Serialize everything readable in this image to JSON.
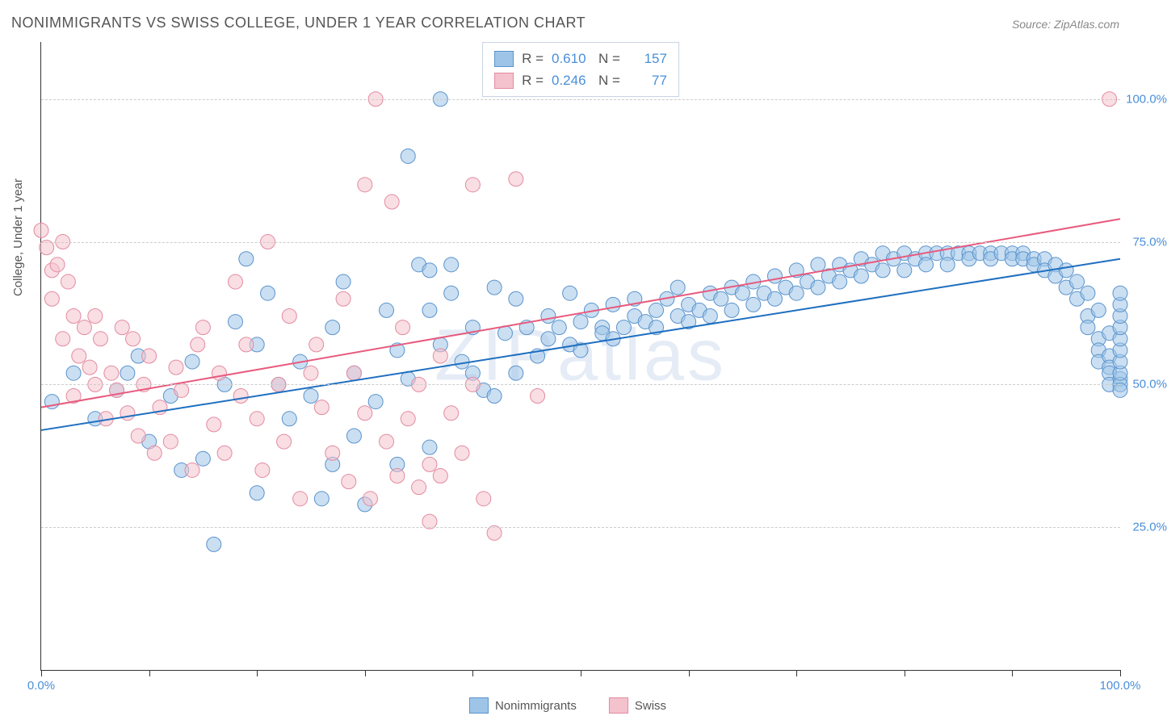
{
  "title": "NONIMMIGRANTS VS SWISS COLLEGE, UNDER 1 YEAR CORRELATION CHART",
  "source": "Source: ZipAtlas.com",
  "watermark": "ZIPatlas",
  "ylabel": "College, Under 1 year",
  "chart": {
    "type": "scatter",
    "background_color": "#ffffff",
    "grid_color": "#cccccc",
    "axis_color": "#333333",
    "xlim": [
      0,
      100
    ],
    "ylim": [
      0,
      110
    ],
    "xticks": [
      0,
      10,
      20,
      30,
      40,
      50,
      60,
      70,
      80,
      90,
      100
    ],
    "xtick_labels": {
      "0": "0.0%",
      "100": "100.0%"
    },
    "yticks": [
      25,
      50,
      75,
      100
    ],
    "ytick_labels": {
      "25": "25.0%",
      "50": "50.0%",
      "75": "75.0%",
      "100": "100.0%"
    },
    "ytick_color": "#4a8fd9",
    "marker_radius": 9,
    "marker_opacity": 0.55,
    "line_width": 2
  },
  "series": [
    {
      "name": "Nonimmigrants",
      "color_fill": "#9ec5e8",
      "color_stroke": "#5b93cc",
      "line_color": "#1f6fc0",
      "R": "0.610",
      "N": "157",
      "trend": {
        "x1": 0,
        "y1": 42,
        "x2": 100,
        "y2": 72
      },
      "points": [
        [
          1,
          47
        ],
        [
          3,
          52
        ],
        [
          5,
          44
        ],
        [
          7,
          49
        ],
        [
          8,
          52
        ],
        [
          9,
          55
        ],
        [
          10,
          40
        ],
        [
          12,
          48
        ],
        [
          13,
          35
        ],
        [
          14,
          54
        ],
        [
          15,
          37
        ],
        [
          16,
          22
        ],
        [
          17,
          50
        ],
        [
          18,
          61
        ],
        [
          19,
          72
        ],
        [
          20,
          57
        ],
        [
          20,
          31
        ],
        [
          21,
          66
        ],
        [
          22,
          50
        ],
        [
          23,
          44
        ],
        [
          24,
          54
        ],
        [
          25,
          48
        ],
        [
          26,
          30
        ],
        [
          27,
          60
        ],
        [
          27,
          36
        ],
        [
          28,
          68
        ],
        [
          29,
          41
        ],
        [
          29,
          52
        ],
        [
          30,
          29
        ],
        [
          31,
          47
        ],
        [
          32,
          63
        ],
        [
          33,
          56
        ],
        [
          33,
          36
        ],
        [
          34,
          90
        ],
        [
          34,
          51
        ],
        [
          35,
          71
        ],
        [
          36,
          63
        ],
        [
          36,
          70
        ],
        [
          36,
          39
        ],
        [
          37,
          57
        ],
        [
          37,
          100
        ],
        [
          38,
          66
        ],
        [
          38,
          71
        ],
        [
          39,
          54
        ],
        [
          40,
          52
        ],
        [
          40,
          60
        ],
        [
          41,
          49
        ],
        [
          42,
          67
        ],
        [
          42,
          48
        ],
        [
          43,
          59
        ],
        [
          44,
          52
        ],
        [
          44,
          65
        ],
        [
          45,
          60
        ],
        [
          46,
          55
        ],
        [
          47,
          62
        ],
        [
          47,
          58
        ],
        [
          48,
          60
        ],
        [
          49,
          57
        ],
        [
          49,
          66
        ],
        [
          50,
          61
        ],
        [
          50,
          56
        ],
        [
          51,
          63
        ],
        [
          52,
          60
        ],
        [
          52,
          59
        ],
        [
          53,
          64
        ],
        [
          53,
          58
        ],
        [
          54,
          60
        ],
        [
          55,
          62
        ],
        [
          55,
          65
        ],
        [
          56,
          61
        ],
        [
          57,
          63
        ],
        [
          57,
          60
        ],
        [
          58,
          65
        ],
        [
          59,
          62
        ],
        [
          59,
          67
        ],
        [
          60,
          64
        ],
        [
          60,
          61
        ],
        [
          61,
          63
        ],
        [
          62,
          66
        ],
        [
          62,
          62
        ],
        [
          63,
          65
        ],
        [
          64,
          67
        ],
        [
          64,
          63
        ],
        [
          65,
          66
        ],
        [
          66,
          68
        ],
        [
          66,
          64
        ],
        [
          67,
          66
        ],
        [
          68,
          69
        ],
        [
          68,
          65
        ],
        [
          69,
          67
        ],
        [
          70,
          70
        ],
        [
          70,
          66
        ],
        [
          71,
          68
        ],
        [
          72,
          71
        ],
        [
          72,
          67
        ],
        [
          73,
          69
        ],
        [
          74,
          71
        ],
        [
          74,
          68
        ],
        [
          75,
          70
        ],
        [
          76,
          72
        ],
        [
          76,
          69
        ],
        [
          77,
          71
        ],
        [
          78,
          73
        ],
        [
          78,
          70
        ],
        [
          79,
          72
        ],
        [
          80,
          73
        ],
        [
          80,
          70
        ],
        [
          81,
          72
        ],
        [
          82,
          73
        ],
        [
          82,
          71
        ],
        [
          83,
          73
        ],
        [
          84,
          73
        ],
        [
          84,
          71
        ],
        [
          85,
          73
        ],
        [
          86,
          73
        ],
        [
          86,
          72
        ],
        [
          87,
          73
        ],
        [
          88,
          73
        ],
        [
          88,
          72
        ],
        [
          89,
          73
        ],
        [
          90,
          73
        ],
        [
          90,
          72
        ],
        [
          91,
          73
        ],
        [
          91,
          72
        ],
        [
          92,
          72
        ],
        [
          92,
          71
        ],
        [
          93,
          72
        ],
        [
          93,
          70
        ],
        [
          94,
          71
        ],
        [
          94,
          69
        ],
        [
          95,
          70
        ],
        [
          95,
          67
        ],
        [
          96,
          68
        ],
        [
          96,
          65
        ],
        [
          97,
          66
        ],
        [
          97,
          62
        ],
        [
          97,
          60
        ],
        [
          98,
          63
        ],
        [
          98,
          58
        ],
        [
          98,
          56
        ],
        [
          98,
          54
        ],
        [
          99,
          59
        ],
        [
          99,
          55
        ],
        [
          99,
          53
        ],
        [
          99,
          52
        ],
        [
          99,
          50
        ],
        [
          100,
          51
        ],
        [
          100,
          50
        ],
        [
          100,
          52
        ],
        [
          100,
          54
        ],
        [
          100,
          56
        ],
        [
          100,
          58
        ],
        [
          100,
          60
        ],
        [
          100,
          62
        ],
        [
          100,
          64
        ],
        [
          100,
          66
        ],
        [
          100,
          49
        ]
      ]
    },
    {
      "name": "Swiss",
      "color_fill": "#f4c2cd",
      "color_stroke": "#e38ba0",
      "line_color": "#e85a7e",
      "R": "0.246",
      "N": "77",
      "trend": {
        "x1": 0,
        "y1": 46,
        "x2": 100,
        "y2": 79
      },
      "points": [
        [
          0,
          77
        ],
        [
          0.5,
          74
        ],
        [
          1,
          70
        ],
        [
          1,
          65
        ],
        [
          1.5,
          71
        ],
        [
          2,
          75
        ],
        [
          2,
          58
        ],
        [
          2.5,
          68
        ],
        [
          3,
          48
        ],
        [
          3,
          62
        ],
        [
          3.5,
          55
        ],
        [
          4,
          60
        ],
        [
          4.5,
          53
        ],
        [
          5,
          62
        ],
        [
          5,
          50
        ],
        [
          5.5,
          58
        ],
        [
          6,
          44
        ],
        [
          6.5,
          52
        ],
        [
          7,
          49
        ],
        [
          7.5,
          60
        ],
        [
          8,
          45
        ],
        [
          8.5,
          58
        ],
        [
          9,
          41
        ],
        [
          9.5,
          50
        ],
        [
          10,
          55
        ],
        [
          10.5,
          38
        ],
        [
          11,
          46
        ],
        [
          12,
          40
        ],
        [
          12.5,
          53
        ],
        [
          13,
          49
        ],
        [
          14,
          35
        ],
        [
          14.5,
          57
        ],
        [
          15,
          60
        ],
        [
          16,
          43
        ],
        [
          16.5,
          52
        ],
        [
          17,
          38
        ],
        [
          18,
          68
        ],
        [
          18.5,
          48
        ],
        [
          19,
          57
        ],
        [
          20,
          44
        ],
        [
          20.5,
          35
        ],
        [
          21,
          75
        ],
        [
          22,
          50
        ],
        [
          22.5,
          40
        ],
        [
          23,
          62
        ],
        [
          24,
          30
        ],
        [
          25,
          52
        ],
        [
          25.5,
          57
        ],
        [
          26,
          46
        ],
        [
          27,
          38
        ],
        [
          28,
          65
        ],
        [
          28.5,
          33
        ],
        [
          29,
          52
        ],
        [
          30,
          45
        ],
        [
          30,
          85
        ],
        [
          30.5,
          30
        ],
        [
          31,
          100
        ],
        [
          32,
          40
        ],
        [
          32.5,
          82
        ],
        [
          33,
          34
        ],
        [
          33.5,
          60
        ],
        [
          34,
          44
        ],
        [
          35,
          50
        ],
        [
          35,
          32
        ],
        [
          36,
          36
        ],
        [
          36,
          26
        ],
        [
          37,
          55
        ],
        [
          37,
          34
        ],
        [
          38,
          45
        ],
        [
          39,
          38
        ],
        [
          40,
          50
        ],
        [
          40,
          85
        ],
        [
          41,
          30
        ],
        [
          42,
          24
        ],
        [
          44,
          86
        ],
        [
          46,
          48
        ],
        [
          99,
          100
        ]
      ]
    }
  ],
  "bottom_legend": [
    {
      "label": "Nonimmigrants",
      "fill": "#9ec5e8",
      "stroke": "#5b93cc"
    },
    {
      "label": "Swiss",
      "fill": "#f4c2cd",
      "stroke": "#e38ba0"
    }
  ]
}
